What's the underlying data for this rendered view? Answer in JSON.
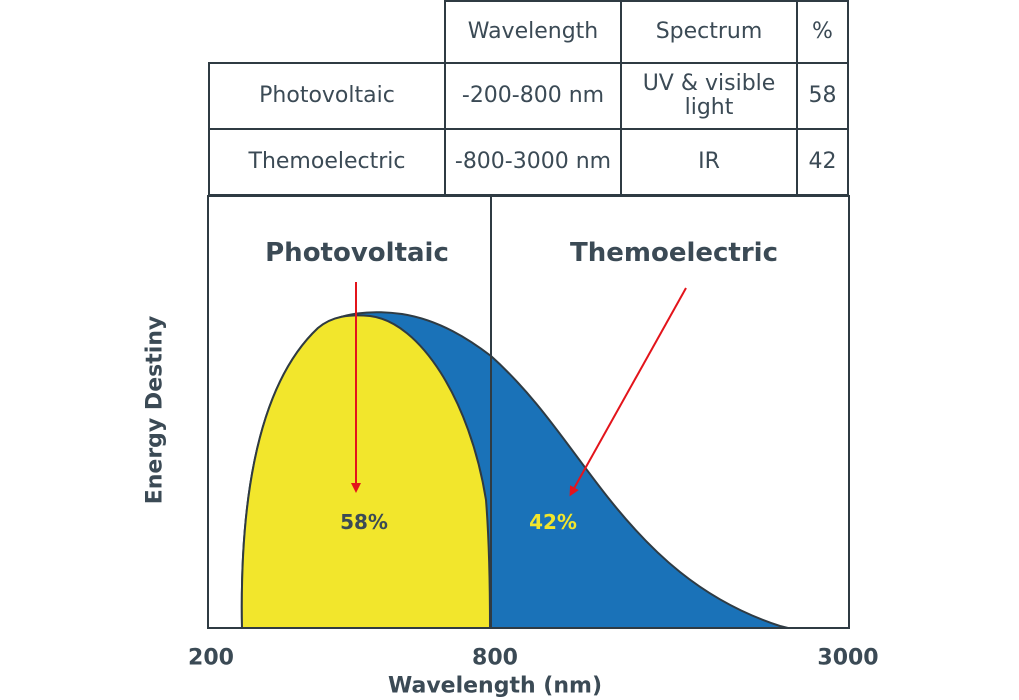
{
  "table": {
    "headers": [
      "",
      "Wavelength",
      "Spectrum",
      "%"
    ],
    "rows": [
      {
        "name": "Photovoltaic",
        "wavelength": "-200-800 nm",
        "spectrum": "UV & visible light",
        "percent": "58"
      },
      {
        "name": "Themoelectric",
        "wavelength": "-800-3000 nm",
        "spectrum": "IR",
        "percent": "42"
      }
    ]
  },
  "chart_data": {
    "type": "area",
    "xlabel": "Wavelength (nm)",
    "ylabel": "Energy Destiny",
    "x_ticks": [
      "200",
      "800",
      "3000"
    ],
    "regions": [
      {
        "name": "Photovoltaic",
        "range": [
          "200",
          "800"
        ],
        "percent": "58%",
        "color": "#f2e62c"
      },
      {
        "name": "Themoelectric",
        "range": [
          "800",
          "3000"
        ],
        "percent": "42%",
        "color": "#1a72b8"
      }
    ],
    "arrow_color": "#e3141b",
    "label_color_pv": "#3b4a55",
    "label_color_te": "#f2e62c"
  }
}
